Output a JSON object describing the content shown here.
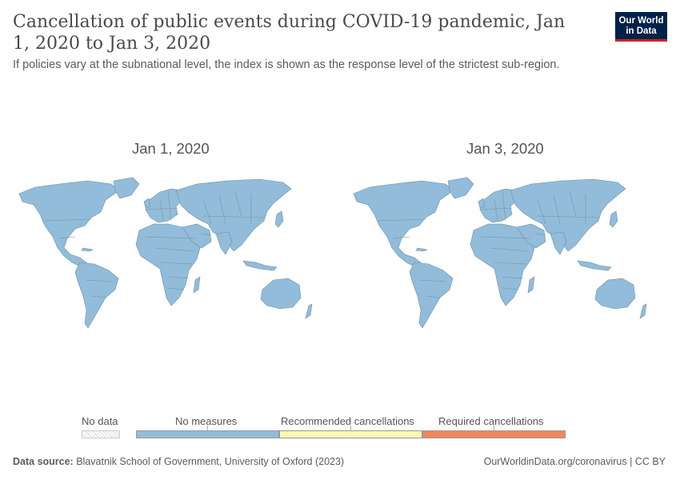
{
  "header": {
    "title": "Cancellation of public events during COVID-19 pandemic, Jan 1, 2020 to Jan 3, 2020",
    "subtitle": "If policies vary at the subnational level, the index is shown as the response level of the strictest sub-region.",
    "logo_line1": "Our World",
    "logo_line2": "in Data"
  },
  "maps": [
    {
      "date": "Jan 1, 2020",
      "status": "No measures"
    },
    {
      "date": "Jan 3, 2020",
      "status": "No measures"
    }
  ],
  "legend": {
    "no_data_label": "No data",
    "categories": [
      {
        "label": "No measures",
        "color": "#92bcd9"
      },
      {
        "label": "Recommended cancellations",
        "color": "#fff8b4"
      },
      {
        "label": "Required cancellations",
        "color": "#f2875a"
      }
    ]
  },
  "footer": {
    "source_label": "Data source:",
    "source_text": "Blavatnik School of Government, University of Oxford (2023)",
    "link_text": "OurWorldinData.org/coronavirus | CC BY"
  },
  "colors": {
    "land": "#92bcd9",
    "logo_bg": "#002147",
    "logo_accent": "#ce261e"
  }
}
